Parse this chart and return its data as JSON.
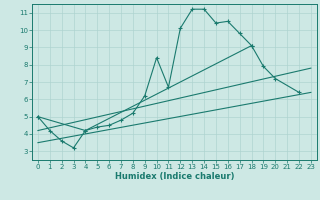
{
  "title": "",
  "xlabel": "Humidex (Indice chaleur)",
  "ylabel": "",
  "background_color": "#cde8e4",
  "grid_color": "#afd4d0",
  "line_color": "#1a7a6e",
  "xlim": [
    -0.5,
    23.5
  ],
  "ylim": [
    2.5,
    11.5
  ],
  "xticks": [
    0,
    1,
    2,
    3,
    4,
    5,
    6,
    7,
    8,
    9,
    10,
    11,
    12,
    13,
    14,
    15,
    16,
    17,
    18,
    19,
    20,
    21,
    22,
    23
  ],
  "yticks": [
    3,
    4,
    5,
    6,
    7,
    8,
    9,
    10,
    11
  ],
  "line1_x": [
    0,
    1,
    2,
    3,
    4,
    5,
    6,
    7,
    8,
    9,
    10,
    11,
    12,
    13,
    14,
    15,
    16,
    17,
    18
  ],
  "line1_y": [
    5.0,
    4.2,
    3.6,
    3.2,
    4.2,
    4.4,
    4.5,
    4.8,
    5.2,
    6.2,
    8.4,
    6.7,
    10.1,
    11.2,
    11.2,
    10.4,
    10.5,
    9.8,
    9.1
  ],
  "line2_x": [
    0,
    4,
    18,
    19,
    20,
    22
  ],
  "line2_y": [
    5.0,
    4.2,
    9.1,
    7.9,
    7.2,
    6.4
  ],
  "line3_x": [
    0,
    23
  ],
  "line3_y": [
    3.5,
    6.4
  ],
  "line4_x": [
    0,
    23
  ],
  "line4_y": [
    4.2,
    7.8
  ],
  "xlabel_fontsize": 6,
  "tick_fontsize": 5
}
